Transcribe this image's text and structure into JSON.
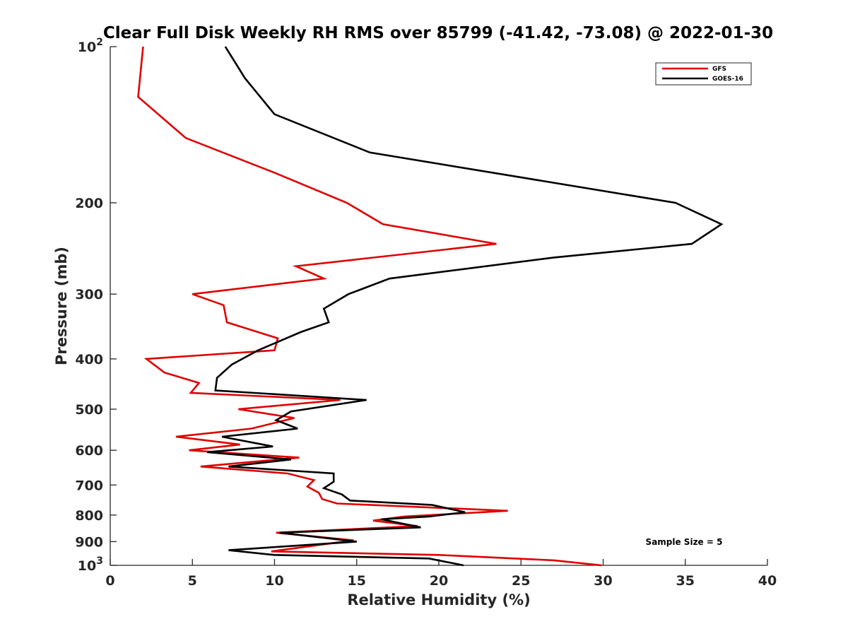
{
  "chart_data": {
    "type": "line",
    "title": "Clear Full Disk Weekly RH RMS over 85799 (-41.42, -73.08) @ 2022-01-30",
    "xlabel": "Relative Humidity (%)",
    "ylabel": "Pressure (mb)",
    "xlim": [
      0,
      40
    ],
    "ylim": [
      100,
      1000
    ],
    "y_scale": "log",
    "y_reversed": true,
    "x_ticks": [
      "0",
      "5",
      "10",
      "15",
      "20",
      "25",
      "30",
      "35",
      "40"
    ],
    "y_ticks": [
      {
        "value": 100,
        "base": "10",
        "exp": "2"
      },
      {
        "value": 200,
        "label": "200"
      },
      {
        "value": 300,
        "label": "300"
      },
      {
        "value": 400,
        "label": "400"
      },
      {
        "value": 500,
        "label": "500"
      },
      {
        "value": 600,
        "label": "600"
      },
      {
        "value": 700,
        "label": "700"
      },
      {
        "value": 800,
        "label": "800"
      },
      {
        "value": 900,
        "label": "900"
      },
      {
        "value": 1000,
        "base": "10",
        "exp": "3"
      }
    ],
    "grid": false,
    "legend_position": "top-right",
    "annotation": "Sample Size = 5",
    "series": [
      {
        "name": "GFS",
        "color": "#e00000",
        "points": [
          [
            2.0,
            100
          ],
          [
            1.7,
            125
          ],
          [
            4.6,
            150
          ],
          [
            10.0,
            175
          ],
          [
            14.4,
            200
          ],
          [
            16.6,
            220
          ],
          [
            23.5,
            240
          ],
          [
            11.3,
            265
          ],
          [
            13.0,
            280
          ],
          [
            5.0,
            300
          ],
          [
            6.9,
            315
          ],
          [
            7.1,
            340
          ],
          [
            10.2,
            365
          ],
          [
            10.0,
            385
          ],
          [
            2.2,
            400
          ],
          [
            3.3,
            425
          ],
          [
            5.4,
            445
          ],
          [
            4.9,
            465
          ],
          [
            14.0,
            480
          ],
          [
            7.8,
            500
          ],
          [
            11.2,
            520
          ],
          [
            8.6,
            545
          ],
          [
            4.0,
            565
          ],
          [
            7.9,
            585
          ],
          [
            4.8,
            600
          ],
          [
            11.5,
            620
          ],
          [
            5.5,
            645
          ],
          [
            10.8,
            665
          ],
          [
            12.4,
            685
          ],
          [
            12.0,
            705
          ],
          [
            12.7,
            725
          ],
          [
            12.9,
            745
          ],
          [
            13.8,
            760
          ],
          [
            24.2,
            785
          ],
          [
            17.9,
            805
          ],
          [
            16.0,
            820
          ],
          [
            18.7,
            840
          ],
          [
            10.1,
            865
          ],
          [
            14.8,
            895
          ],
          [
            9.8,
            940
          ],
          [
            20.0,
            955
          ],
          [
            27.0,
            978
          ],
          [
            29.9,
            1000
          ]
        ]
      },
      {
        "name": "GOES-16",
        "color": "#000000",
        "points": [
          [
            7.0,
            100
          ],
          [
            8.2,
            115
          ],
          [
            10.0,
            135
          ],
          [
            15.8,
            160
          ],
          [
            34.4,
            200
          ],
          [
            37.2,
            220
          ],
          [
            35.4,
            240
          ],
          [
            27.0,
            255
          ],
          [
            17.0,
            280
          ],
          [
            14.5,
            300
          ],
          [
            13.0,
            320
          ],
          [
            13.3,
            340
          ],
          [
            11.6,
            355
          ],
          [
            9.0,
            385
          ],
          [
            7.4,
            410
          ],
          [
            6.5,
            435
          ],
          [
            6.4,
            460
          ],
          [
            15.6,
            480
          ],
          [
            11.0,
            505
          ],
          [
            10.1,
            525
          ],
          [
            11.4,
            545
          ],
          [
            6.8,
            565
          ],
          [
            9.9,
            590
          ],
          [
            5.9,
            605
          ],
          [
            11.0,
            625
          ],
          [
            7.2,
            645
          ],
          [
            13.6,
            665
          ],
          [
            13.6,
            690
          ],
          [
            13.0,
            710
          ],
          [
            14.1,
            730
          ],
          [
            14.6,
            750
          ],
          [
            19.6,
            765
          ],
          [
            21.6,
            790
          ],
          [
            19.4,
            805
          ],
          [
            16.5,
            815
          ],
          [
            18.9,
            845
          ],
          [
            10.3,
            865
          ],
          [
            15.0,
            900
          ],
          [
            7.2,
            935
          ],
          [
            10.0,
            955
          ],
          [
            19.4,
            970
          ],
          [
            21.5,
            1000
          ]
        ]
      }
    ]
  }
}
